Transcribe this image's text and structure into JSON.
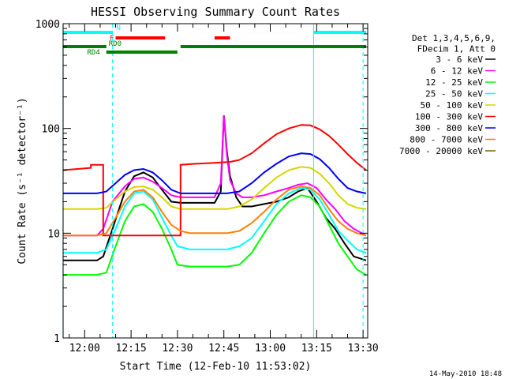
{
  "chart_data": {
    "type": "line",
    "title": "HESSI Observing Summary Count Rates",
    "xlabel": "Start Time (12-Feb-10 11:53:02)",
    "ylabel": "Count Rate (s⁻¹ detector⁻¹)",
    "footer": "14-May-2010 18:48",
    "y_scale": "log",
    "ylim": [
      1,
      1000
    ],
    "y_ticks": [
      {
        "value": 1,
        "label": "1"
      },
      {
        "value": 10,
        "label": "10"
      },
      {
        "value": 100,
        "label": "100"
      },
      {
        "value": 1000,
        "label": "1000"
      }
    ],
    "xlim": [
      "11:53:02",
      "13:31:30"
    ],
    "x_ticks": [
      {
        "value": "12:00",
        "label": "12:00"
      },
      {
        "value": "12:15",
        "label": "12:15"
      },
      {
        "value": "12:30",
        "label": "12:30"
      },
      {
        "value": "12:45",
        "label": "12:45"
      },
      {
        "value": "13:00",
        "label": "13:00"
      },
      {
        "value": "13:15",
        "label": "13:15"
      },
      {
        "value": "13:30",
        "label": "13:30"
      }
    ],
    "legend": {
      "placement": "right",
      "header": [
        "Det 1,3,4,5,6,9,",
        "FDecim 1, Att 0"
      ]
    },
    "series": [
      {
        "name": "3 - 6 keV",
        "color": "#000000",
        "x": [
          "11:53",
          "12:04",
          "12:06",
          "12:09",
          "12:13",
          "12:16",
          "12:19",
          "12:22",
          "12:25",
          "12:28",
          "12:31",
          "12:34",
          "12:38",
          "12:42",
          "12:44",
          "12:45",
          "12:46",
          "12:47",
          "12:49",
          "12:51",
          "12:54",
          "12:58",
          "13:02",
          "13:06",
          "13:09",
          "13:12",
          "13:15",
          "13:18",
          "13:21",
          "13:24",
          "13:27",
          "13:31"
        ],
        "y": [
          5.5,
          5.5,
          6,
          11,
          25,
          35,
          38,
          34,
          26,
          20,
          19.5,
          19.5,
          19.5,
          19.5,
          25,
          133,
          60,
          35,
          22,
          18,
          18,
          19,
          20,
          22,
          25,
          27,
          20,
          14,
          11,
          8,
          6,
          5.5
        ]
      },
      {
        "name": "6 - 12 keV",
        "color": "#ff00ff",
        "x": [
          "11:53",
          "12:04",
          "12:06",
          "12:09",
          "12:13",
          "12:16",
          "12:19",
          "12:22",
          "12:25",
          "12:28",
          "12:31",
          "12:34",
          "12:38",
          "12:42",
          "12:44",
          "12:45",
          "12:46",
          "12:47",
          "12:49",
          "12:51",
          "12:54",
          "12:58",
          "13:02",
          "13:06",
          "13:09",
          "13:12",
          "13:15",
          "13:18",
          "13:21",
          "13:24",
          "13:27",
          "13:31"
        ],
        "y": [
          9.5,
          9.5,
          11,
          20,
          28,
          33,
          34,
          31,
          27,
          23,
          22,
          22,
          22,
          22,
          30,
          133,
          55,
          32,
          24,
          22,
          22,
          23,
          25,
          27,
          29,
          30,
          27,
          21,
          17,
          13,
          11,
          9.5
        ]
      },
      {
        "name": "12 - 25 keV",
        "color": "#00ff00",
        "x": [
          "11:53",
          "12:04",
          "12:07",
          "12:10",
          "12:13",
          "12:16",
          "12:19",
          "12:22",
          "12:25",
          "12:28",
          "12:30",
          "12:34",
          "12:38",
          "12:42",
          "12:46",
          "12:50",
          "12:54",
          "12:58",
          "13:02",
          "13:06",
          "13:10",
          "13:13",
          "13:16",
          "13:19",
          "13:22",
          "13:25",
          "13:28",
          "13:31"
        ],
        "y": [
          4,
          4,
          4.2,
          7.5,
          13,
          18,
          19,
          16,
          11,
          7,
          5,
          4.8,
          4.8,
          4.8,
          4.8,
          5,
          6.5,
          10,
          15,
          20,
          23,
          22,
          18,
          12,
          8,
          6,
          4.5,
          4
        ]
      },
      {
        "name": "25 - 50 keV",
        "color": "#00ffff",
        "x": [
          "11:53",
          "12:04",
          "12:07",
          "12:10",
          "12:13",
          "12:16",
          "12:19",
          "12:22",
          "12:25",
          "12:28",
          "12:30",
          "12:34",
          "12:38",
          "12:42",
          "12:46",
          "12:50",
          "12:54",
          "12:58",
          "13:02",
          "13:06",
          "13:10",
          "13:13",
          "13:16",
          "13:19",
          "13:22",
          "13:25",
          "13:28",
          "13:31"
        ],
        "y": [
          6.5,
          6.5,
          7,
          11,
          18,
          24,
          25,
          21,
          14,
          9.5,
          7.5,
          7,
          7,
          7,
          7,
          7.5,
          9,
          13,
          19,
          24,
          27,
          26,
          21,
          15,
          10.5,
          8.5,
          7,
          6.5
        ]
      },
      {
        "name": "50 - 100 keV",
        "color": "#d6d600",
        "x": [
          "11:53",
          "12:04",
          "12:07",
          "12:10",
          "12:13",
          "12:16",
          "12:19",
          "12:22",
          "12:25",
          "12:28",
          "12:31",
          "12:34",
          "12:38",
          "12:42",
          "12:46",
          "12:50",
          "12:54",
          "12:58",
          "13:02",
          "13:06",
          "13:10",
          "13:13",
          "13:16",
          "13:19",
          "13:22",
          "13:25",
          "13:28",
          "13:31"
        ],
        "y": [
          17,
          17,
          17.5,
          21,
          25,
          27.5,
          28,
          26,
          22,
          18,
          17,
          17,
          17,
          17,
          17,
          18,
          21,
          27,
          34,
          40,
          43,
          42,
          37,
          30,
          23,
          19,
          17.5,
          17
        ]
      },
      {
        "name": "100 - 300 keV",
        "color": "#ff0000",
        "x": [
          "11:53",
          "12:02",
          "12:02",
          "12:06",
          "12:06",
          "12:10",
          "12:14",
          "12:18",
          "12:22",
          "12:26",
          "12:30",
          "12:31",
          "12:31",
          "12:36",
          "12:42",
          "12:47",
          "12:50",
          "12:54",
          "12:58",
          "13:02",
          "13:06",
          "13:10",
          "13:13",
          "13:16",
          "13:19",
          "13:22",
          "13:25",
          "13:28",
          "13:31"
        ],
        "y": [
          40,
          42,
          45,
          45,
          9.5,
          9.5,
          9.5,
          9.5,
          9.5,
          9.5,
          9.5,
          9.5,
          45,
          46,
          47,
          48,
          50,
          58,
          72,
          88,
          100,
          108,
          107,
          98,
          85,
          70,
          57,
          47,
          40
        ]
      },
      {
        "name": "300 - 800 keV",
        "color": "#0000ff",
        "x": [
          "11:53",
          "12:04",
          "12:07",
          "12:10",
          "12:13",
          "12:16",
          "12:19",
          "12:22",
          "12:25",
          "12:28",
          "12:31",
          "12:34",
          "12:38",
          "12:42",
          "12:46",
          "12:50",
          "12:54",
          "12:58",
          "13:02",
          "13:06",
          "13:10",
          "13:13",
          "13:16",
          "13:19",
          "13:22",
          "13:25",
          "13:28",
          "13:31"
        ],
        "y": [
          24,
          24,
          25,
          30,
          36,
          40,
          41,
          38,
          32,
          26,
          24,
          24,
          24,
          24,
          24,
          25,
          30,
          38,
          46,
          54,
          58,
          57,
          51,
          42,
          33,
          27,
          25,
          24
        ]
      },
      {
        "name": "800 - 7000 keV",
        "color": "#ff8000",
        "x": [
          "11:53",
          "12:04",
          "12:07",
          "12:10",
          "12:13",
          "12:16",
          "12:19",
          "12:22",
          "12:25",
          "12:28",
          "12:31",
          "12:34",
          "12:38",
          "12:42",
          "12:46",
          "12:50",
          "12:54",
          "12:58",
          "13:02",
          "13:06",
          "13:10",
          "13:13",
          "13:16",
          "13:19",
          "13:22",
          "13:25",
          "13:28",
          "13:31"
        ],
        "y": [
          9.5,
          9.5,
          10,
          14,
          20,
          25,
          26,
          22,
          16,
          12,
          10.5,
          10,
          10,
          10,
          10,
          10.5,
          12.5,
          16,
          21,
          26,
          28,
          27,
          23,
          17,
          13,
          11,
          10,
          9.5
        ]
      },
      {
        "name": "7000 - 20000 keV",
        "color": "#806000",
        "x": [],
        "y": []
      }
    ],
    "flags": [
      {
        "label": "N",
        "color": "#00ffff",
        "segments": [
          [
            "11:53",
            "12:09"
          ],
          [
            "13:14",
            "13:31"
          ]
        ]
      },
      {
        "label": "F",
        "color": "#ff0000",
        "segments": [
          [
            "12:10",
            "12:26"
          ],
          [
            "12:42",
            "12:47"
          ]
        ]
      },
      {
        "label": "RD0",
        "color": "#008000",
        "segments": [
          [
            "11:53",
            "12:07"
          ],
          [
            "12:31",
            "13:31"
          ]
        ]
      },
      {
        "label": "RD4",
        "color": "#008000",
        "segments": [
          [
            "12:07",
            "12:30"
          ]
        ]
      }
    ],
    "markers": [
      {
        "x": "11:53",
        "style": "solid",
        "color": "#00ffff"
      },
      {
        "x": "12:09",
        "style": "dashed",
        "color": "#00ffff"
      },
      {
        "x": "13:14",
        "style": "solid",
        "color": "#00ffff"
      },
      {
        "x": "13:30",
        "style": "dashed",
        "color": "#00ffff"
      }
    ]
  }
}
